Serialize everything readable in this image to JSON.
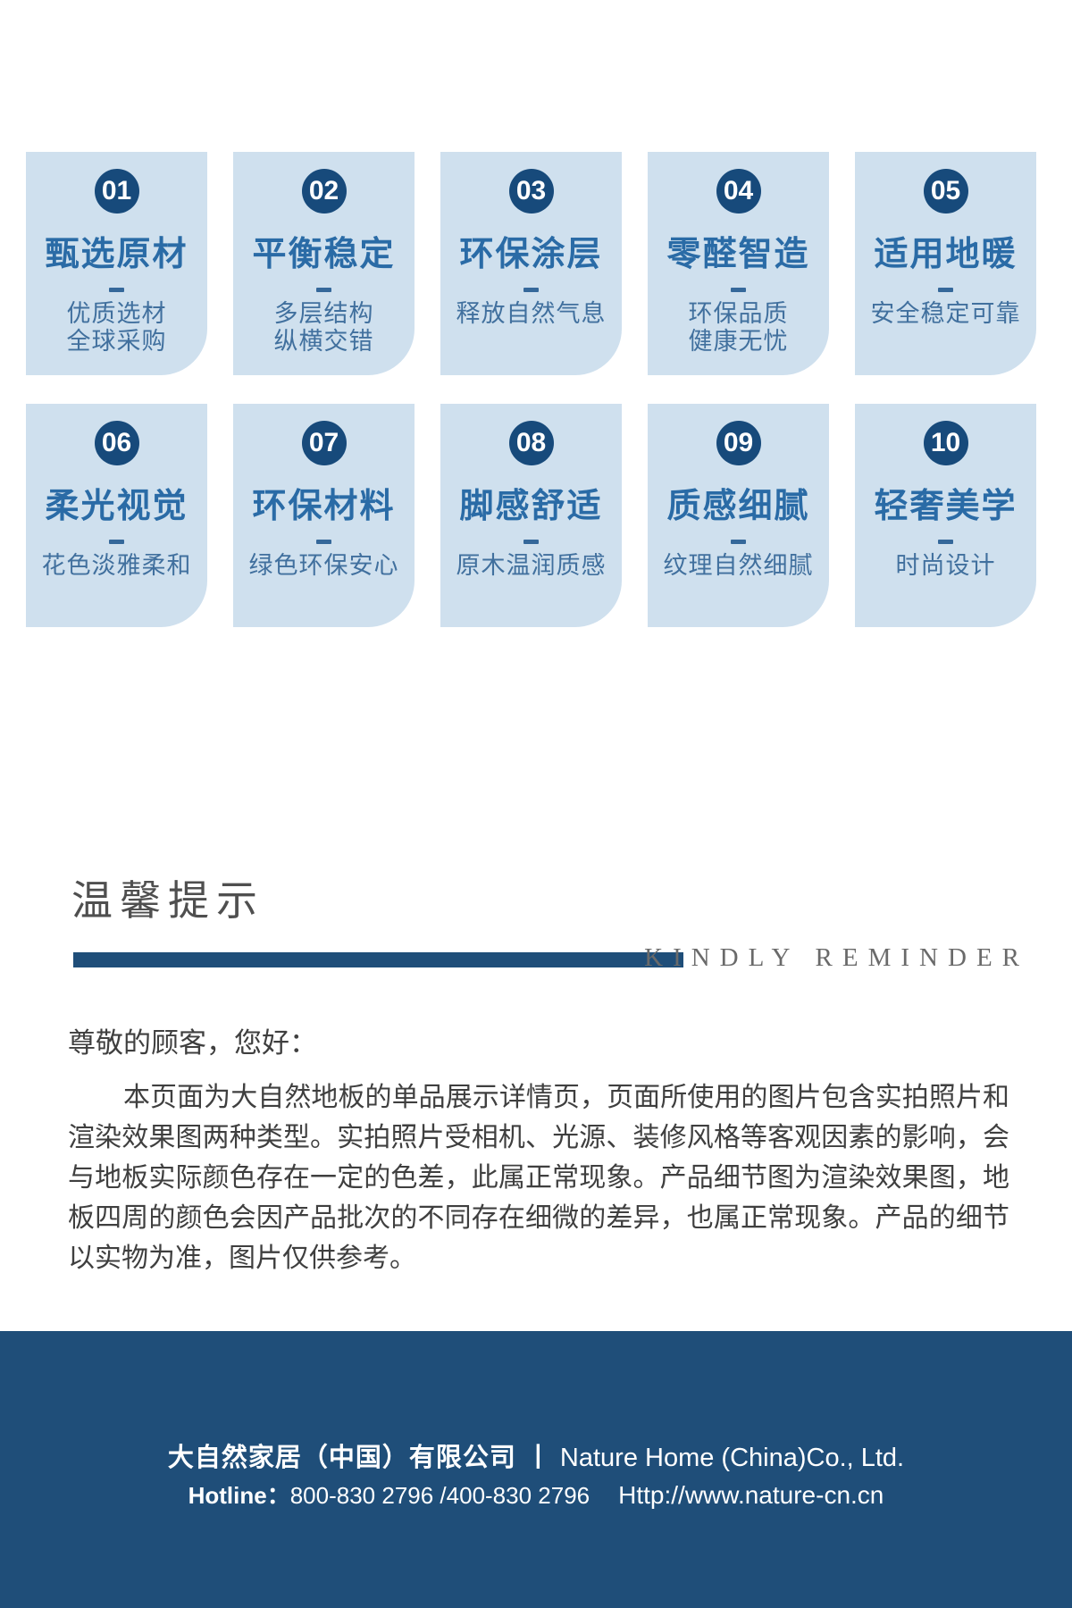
{
  "features": {
    "cards": [
      {
        "num": "01",
        "title": "甄选原材",
        "lines": [
          "优质选材",
          "全球采购"
        ]
      },
      {
        "num": "02",
        "title": "平衡稳定",
        "lines": [
          "多层结构",
          "纵横交错"
        ]
      },
      {
        "num": "03",
        "title": "环保涂层",
        "lines": [
          "释放自然气息"
        ]
      },
      {
        "num": "04",
        "title": "零醛智造",
        "lines": [
          "环保品质",
          "健康无忧"
        ]
      },
      {
        "num": "05",
        "title": "适用地暖",
        "lines": [
          "安全稳定可靠"
        ]
      },
      {
        "num": "06",
        "title": "柔光视觉",
        "lines": [
          "花色淡雅柔和"
        ]
      },
      {
        "num": "07",
        "title": "环保材料",
        "lines": [
          "绿色环保安心"
        ]
      },
      {
        "num": "08",
        "title": "脚感舒适",
        "lines": [
          "原木温润质感"
        ]
      },
      {
        "num": "09",
        "title": "质感细腻",
        "lines": [
          "纹理自然细腻"
        ]
      },
      {
        "num": "10",
        "title": "轻奢美学",
        "lines": [
          "时尚设计"
        ]
      }
    ]
  },
  "reminder": {
    "title_cn": "温馨提示",
    "title_en": "KINDLY REMINDER",
    "salutation": "尊敬的顾客，您好：",
    "body": "本页面为大自然地板的单品展示详情页，页面所使用的图片包含实拍照片和渲染效果图两种类型。实拍照片受相机、光源、装修风格等客观因素的影响，会与地板实际颜色存在一定的色差，此属正常现象。产品细节图为渲染效果图，地板四周的颜色会因产品批次的不同存在细微的差异，也属正常现象。产品的细节以实物为准，图片仅供参考。"
  },
  "footer": {
    "company_cn": "大自然家居（中国）有限公司",
    "separator": "丨",
    "company_en": "Nature Home (China)Co., Ltd.",
    "hotline_label": "Hotline：",
    "hotline_numbers": "800-830 2796 /400-830 2796",
    "website": "Http://www.nature-cn.cn"
  },
  "colors": {
    "card_background": "#cfe0ee",
    "badge_navy": "#174a7b",
    "title_blue": "#2a6ba6",
    "subtitle_blue": "#41709e",
    "bar_navy": "#1f4e79",
    "footer_navy": "#1f4e79",
    "heading_gray": "#4f4f4f",
    "reminder_en_gray": "#6a6a6a",
    "body_gray": "#3f3f3f"
  }
}
